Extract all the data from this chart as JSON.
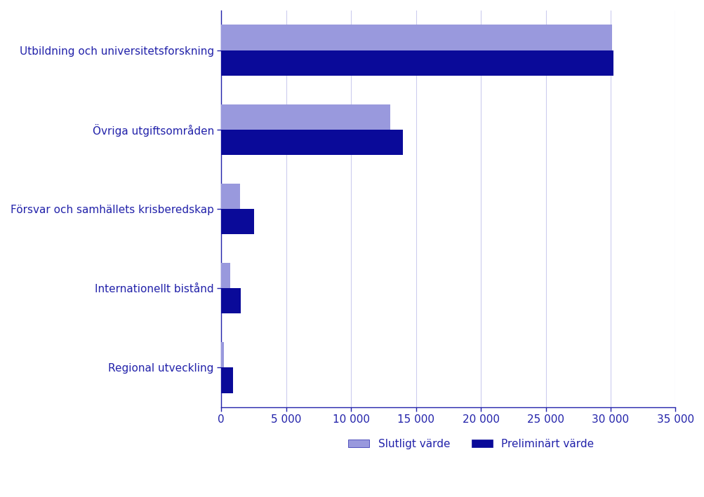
{
  "categories": [
    "Utbildning och universitetsforskning",
    "Övriga utgiftsområden",
    "Försvar och samhällets krisberedskap",
    "Internationellt bistånd",
    "Regional utveckling"
  ],
  "slutligt": [
    30100,
    13000,
    1450,
    700,
    190
  ],
  "preliminart": [
    30200,
    14000,
    2500,
    1500,
    900
  ],
  "color_slutligt": "#9999dd",
  "color_preliminart": "#0a0a99",
  "xlim": [
    0,
    35000
  ],
  "xticks": [
    0,
    5000,
    10000,
    15000,
    20000,
    25000,
    30000,
    35000
  ],
  "xtick_labels": [
    "0",
    "5 000",
    "10 000",
    "15 000",
    "20 000",
    "25 000",
    "30 000",
    "35 000"
  ],
  "legend_slutligt": "Slutligt värde",
  "legend_preliminart": "Preliminärt värde",
  "bar_height": 0.32,
  "text_color": "#2222aa",
  "grid_color": "#ccccee",
  "axis_color": "#2222aa",
  "background_color": "#ffffff"
}
